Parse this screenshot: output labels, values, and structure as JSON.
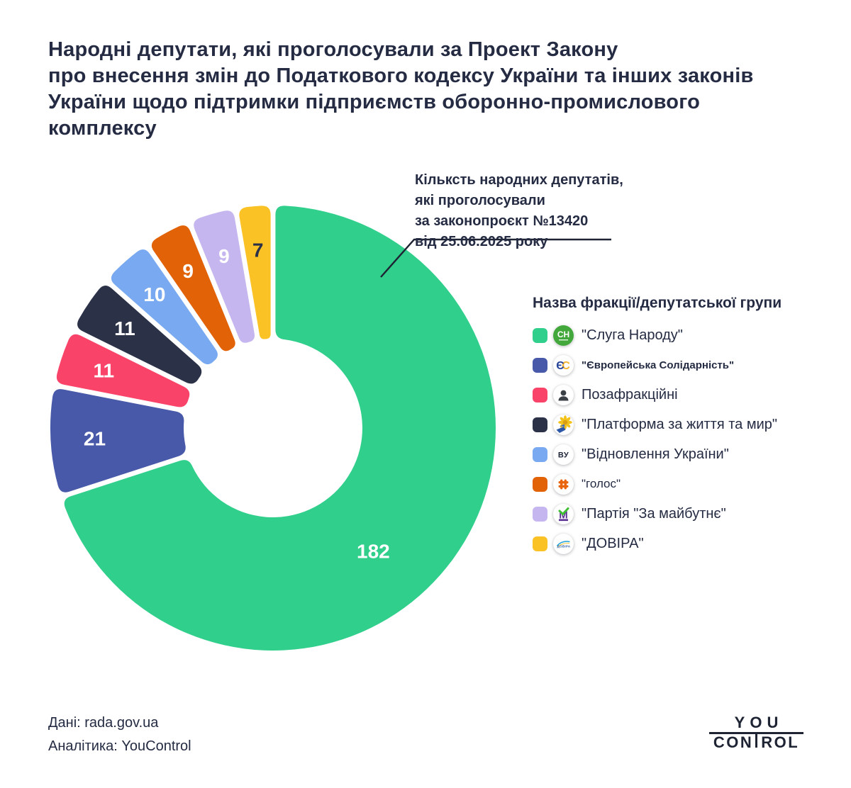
{
  "title_lines": [
    "Народні депутати, які проголосували за Проект Закону",
    "про внесення змін до Податкового кодексу України та інших законів",
    "України щодо підтримки підприємств оборонно-промислового",
    "комплексу"
  ],
  "annotation": {
    "lines": [
      "Кільксть народних депутатів,",
      "які проголосували",
      "за законопроєкт №13420",
      "від 25.06.2025 року"
    ]
  },
  "chart_data": {
    "type": "pie",
    "subtype": "donut",
    "title": "Кільксть народних депутатів, які проголосували за законопроєкт №13420 від 25.06.2025 року",
    "legend_title": "Назва фракції/депутатської групи",
    "start_angle_deg": 0,
    "direction": "clockwise",
    "total": 260,
    "series": [
      {
        "id": "sluha-narodu",
        "name": "\"Слуга Народу\"",
        "value": 182,
        "color": "#30CF8C",
        "value_label_color": "#FFFFFF"
      },
      {
        "id": "yevropeiska-solidarnist",
        "name": "\"Європейська Солідарність\"",
        "value": 21,
        "color": "#4759A8",
        "value_label_color": "#FFFFFF"
      },
      {
        "id": "pozafraktsiini",
        "name": "Позафракційні",
        "value": 11,
        "color": "#FA4368",
        "value_label_color": "#FFFFFF"
      },
      {
        "id": "platforma-za-zhyttia-myr",
        "name": "\"Платформа за життя та мир\"",
        "value": 11,
        "color": "#2B3147",
        "value_label_color": "#FFFFFF"
      },
      {
        "id": "vidnovlennia-ukrainy",
        "name": "\"Відновлення України\"",
        "value": 10,
        "color": "#78A9F1",
        "value_label_color": "#FFFFFF"
      },
      {
        "id": "holos",
        "name": "\"голос\"",
        "value": 9,
        "color": "#E26208",
        "value_label_color": "#FFFFFF"
      },
      {
        "id": "partiia-za-maibutnie",
        "name": "\"Партія \"За майбутнє\"",
        "value": 9,
        "color": "#C6B6F0",
        "value_label_color": "#FFFFFF"
      },
      {
        "id": "dovira",
        "name": "\"ДОВІРА\"",
        "value": 7,
        "color": "#FBC226",
        "value_label_color": "#2A3148"
      }
    ]
  },
  "legend": {
    "items": [
      {
        "icon": "sn-party-logo-icon",
        "style": "normal"
      },
      {
        "icon": "es-party-logo-icon",
        "style": "small-bold"
      },
      {
        "icon": "independent-deputy-icon",
        "style": "normal"
      },
      {
        "icon": "platform-life-peace-logo-icon",
        "style": "normal"
      },
      {
        "icon": "vu-party-logo-icon",
        "style": "normal"
      },
      {
        "icon": "holos-party-logo-icon",
        "style": "small"
      },
      {
        "icon": "za-maibutnie-party-logo-icon",
        "style": "normal"
      },
      {
        "icon": "dovira-party-logo-icon",
        "style": "normal"
      }
    ]
  },
  "footer": {
    "source": "Дані: rada.gov.ua",
    "analytics": "Аналітика: YouControl"
  },
  "logo": {
    "top": "YOU",
    "bottom": "CONTROL"
  },
  "colors": {
    "text": "#242B42",
    "callout_line": "#1E2433",
    "background": "#FFFFFF"
  }
}
